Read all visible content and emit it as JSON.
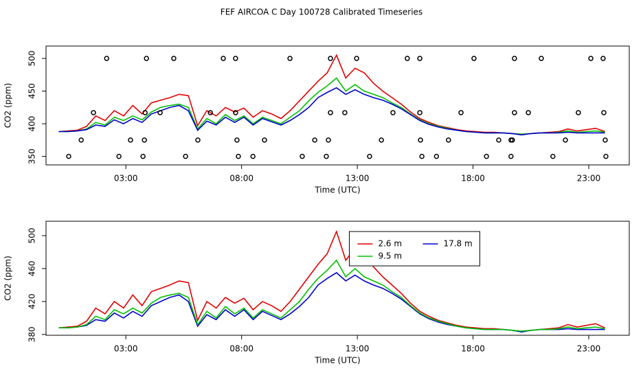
{
  "title": "FEF AIRCOA C  Day 100728  Calibrated Timeseries",
  "chart_data": [
    {
      "type": "line",
      "xlabel": "Time (UTC)",
      "ylabel": "CO2 (ppm)",
      "xlim": [
        -0.45,
        24.75
      ],
      "ylim": [
        337,
        519
      ],
      "xticks": [
        {
          "value": 3,
          "label": "03:00"
        },
        {
          "value": 8,
          "label": "08:00"
        },
        {
          "value": 13,
          "label": "13:00"
        },
        {
          "value": 18,
          "label": "18:00"
        },
        {
          "value": 23,
          "label": "23:00"
        }
      ],
      "yticks": [
        350,
        400,
        450,
        500
      ],
      "x": [
        0.1,
        0.5,
        0.9,
        1.3,
        1.7,
        2.1,
        2.5,
        2.9,
        3.3,
        3.7,
        4.1,
        4.5,
        4.9,
        5.3,
        5.7,
        6.1,
        6.5,
        6.9,
        7.3,
        7.7,
        8.1,
        8.5,
        8.9,
        9.3,
        9.7,
        10.1,
        10.5,
        10.9,
        11.3,
        11.7,
        12.1,
        12.5,
        12.9,
        13.3,
        13.7,
        14.1,
        14.5,
        14.9,
        15.3,
        15.7,
        16.1,
        16.5,
        16.9,
        17.3,
        17.7,
        18.1,
        18.5,
        18.9,
        19.3,
        19.7,
        20.1,
        20.5,
        20.9,
        21.3,
        21.7,
        22.1,
        22.5,
        22.9,
        23.3,
        23.7
      ],
      "series": [
        {
          "color": "#e00000",
          "values": [
            388,
            389,
            390,
            396,
            412,
            405,
            420,
            412,
            428,
            415,
            432,
            436,
            440,
            445,
            443,
            397,
            420,
            412,
            425,
            418,
            424,
            410,
            420,
            415,
            408,
            420,
            435,
            450,
            465,
            478,
            505,
            470,
            485,
            478,
            462,
            450,
            440,
            430,
            418,
            408,
            402,
            397,
            394,
            391,
            389,
            388,
            387,
            387,
            386,
            385,
            384,
            385,
            386,
            387,
            388,
            392,
            389,
            391,
            393,
            388
          ]
        },
        {
          "color": "#00c000",
          "values": [
            388,
            388,
            389,
            392,
            402,
            398,
            410,
            405,
            412,
            406,
            418,
            425,
            428,
            430,
            425,
            392,
            408,
            400,
            414,
            405,
            412,
            400,
            410,
            405,
            400,
            410,
            420,
            435,
            448,
            458,
            470,
            450,
            460,
            450,
            445,
            440,
            432,
            425,
            415,
            406,
            400,
            396,
            393,
            390,
            388,
            387,
            386,
            386,
            386,
            385,
            384,
            385,
            386,
            386,
            387,
            389,
            387,
            388,
            389,
            387
          ]
        },
        {
          "color": "#0000cc",
          "values": [
            388,
            388,
            389,
            391,
            398,
            396,
            406,
            400,
            408,
            402,
            415,
            420,
            425,
            428,
            420,
            390,
            404,
            398,
            410,
            402,
            410,
            398,
            408,
            403,
            398,
            405,
            414,
            425,
            440,
            448,
            455,
            445,
            452,
            445,
            440,
            436,
            430,
            423,
            414,
            405,
            399,
            395,
            392,
            390,
            388,
            387,
            386,
            386,
            386,
            385,
            383,
            385,
            386,
            386,
            386,
            387,
            386,
            386,
            386,
            386
          ]
        }
      ],
      "markers": {
        "x": [
          2.17,
          3.89,
          5.07,
          7.21,
          7.74,
          10.09,
          11.84,
          12.97,
          15.16,
          15.7,
          18.04,
          19.79,
          20.95,
          23.09,
          23.62,
          1.6,
          3.83,
          4.48,
          6.65,
          7.74,
          12.46,
          11.84,
          14.54,
          15.7,
          17.48,
          19.79,
          20.39,
          22.55,
          23.65,
          1.07,
          3.2,
          3.8,
          6.11,
          7.8,
          8.99,
          11.16,
          11.75,
          14.04,
          15.73,
          16.94,
          19.11,
          19.64,
          19.7,
          21.99,
          23.71,
          0.53,
          2.7,
          3.74,
          5.58,
          7.86,
          8.49,
          10.62,
          11.66,
          13.53,
          15.79,
          16.42,
          18.58,
          19.64,
          21.45,
          23.74
        ],
        "y": [
          500,
          500,
          500,
          500,
          500,
          500,
          500,
          500,
          500,
          500,
          500,
          500,
          500,
          500,
          500,
          417,
          417,
          417,
          417,
          417,
          417,
          417,
          417,
          417,
          417,
          417,
          417,
          417,
          417,
          375,
          375,
          375,
          375,
          375,
          375,
          375,
          375,
          375,
          375,
          375,
          375,
          375,
          375,
          375,
          375,
          350,
          350,
          350,
          350,
          350,
          350,
          350,
          350,
          350,
          350,
          350,
          350,
          350,
          350,
          350
        ]
      }
    },
    {
      "type": "line",
      "xlabel": "Time (UTC)",
      "ylabel": "CO2 (ppm)",
      "legend": "top",
      "xlim": [
        -0.45,
        24.75
      ],
      "ylim": [
        379,
        517.5
      ],
      "xticks": [
        {
          "value": 3,
          "label": "03:00"
        },
        {
          "value": 8,
          "label": "08:00"
        },
        {
          "value": 13,
          "label": "13:00"
        },
        {
          "value": 18,
          "label": "18:00"
        },
        {
          "value": 23,
          "label": "23:00"
        }
      ],
      "yticks": [
        380,
        420,
        460,
        500
      ],
      "x": [
        0.1,
        0.5,
        0.9,
        1.3,
        1.7,
        2.1,
        2.5,
        2.9,
        3.3,
        3.7,
        4.1,
        4.5,
        4.9,
        5.3,
        5.7,
        6.1,
        6.5,
        6.9,
        7.3,
        7.7,
        8.1,
        8.5,
        8.9,
        9.3,
        9.7,
        10.1,
        10.5,
        10.9,
        11.3,
        11.7,
        12.1,
        12.5,
        12.9,
        13.3,
        13.7,
        14.1,
        14.5,
        14.9,
        15.3,
        15.7,
        16.1,
        16.5,
        16.9,
        17.3,
        17.7,
        18.1,
        18.5,
        18.9,
        19.3,
        19.7,
        20.1,
        20.5,
        20.9,
        21.3,
        21.7,
        22.1,
        22.5,
        22.9,
        23.3,
        23.7
      ],
      "series": [
        {
          "name": "2.6 m",
          "color": "#e00000",
          "values": [
            388,
            389,
            390,
            396,
            412,
            405,
            420,
            412,
            428,
            415,
            432,
            436,
            440,
            445,
            443,
            397,
            420,
            412,
            425,
            418,
            424,
            410,
            420,
            415,
            408,
            420,
            435,
            450,
            465,
            478,
            505,
            470,
            485,
            478,
            462,
            450,
            440,
            430,
            418,
            408,
            402,
            397,
            394,
            391,
            389,
            388,
            387,
            387,
            386,
            385,
            384,
            385,
            386,
            387,
            388,
            392,
            389,
            391,
            393,
            388
          ]
        },
        {
          "name": "17.8 m",
          "color": "#0000cc",
          "values": [
            388,
            388,
            389,
            391,
            398,
            396,
            406,
            400,
            408,
            402,
            415,
            420,
            425,
            428,
            420,
            390,
            404,
            398,
            410,
            402,
            410,
            398,
            408,
            403,
            398,
            405,
            414,
            425,
            440,
            448,
            455,
            445,
            452,
            445,
            440,
            436,
            430,
            423,
            414,
            405,
            399,
            395,
            392,
            390,
            388,
            387,
            386,
            386,
            386,
            385,
            383,
            385,
            386,
            386,
            386,
            387,
            386,
            386,
            386,
            386
          ]
        },
        {
          "name": "9.5 m",
          "color": "#00c000",
          "values": [
            388,
            388,
            389,
            392,
            402,
            398,
            410,
            405,
            412,
            406,
            418,
            425,
            428,
            430,
            425,
            392,
            408,
            400,
            414,
            405,
            412,
            400,
            410,
            405,
            400,
            410,
            420,
            435,
            448,
            458,
            470,
            450,
            460,
            450,
            445,
            440,
            432,
            425,
            415,
            406,
            400,
            396,
            393,
            390,
            388,
            387,
            386,
            386,
            386,
            385,
            384,
            385,
            386,
            386,
            387,
            389,
            387,
            388,
            389,
            387
          ]
        }
      ]
    }
  ]
}
